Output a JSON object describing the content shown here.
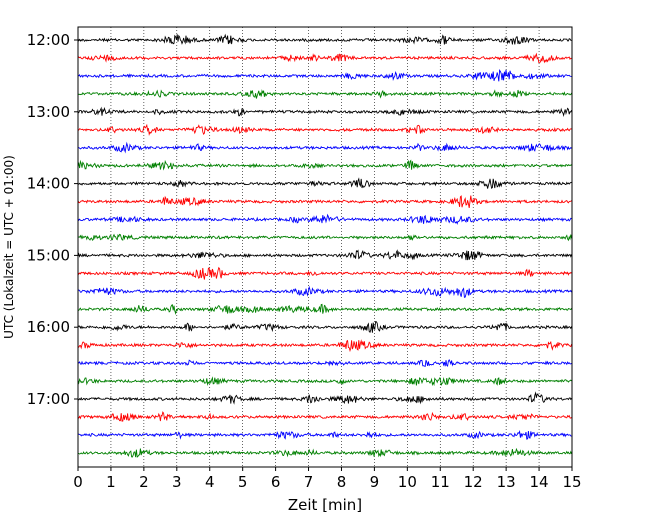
{
  "chart_data": {
    "type": "line",
    "title": "",
    "xlabel": "Zeit  [min]",
    "ylabel": "UTC (Lokalzeit = UTC + 01:00)",
    "xlim": [
      0,
      15
    ],
    "x_ticks": [
      0,
      1,
      2,
      3,
      4,
      5,
      6,
      7,
      8,
      9,
      10,
      11,
      12,
      13,
      14,
      15
    ],
    "y_tick_labels": [
      "12:00",
      "13:00",
      "14:00",
      "15:00",
      "16:00",
      "17:00"
    ],
    "rows_per_hour": 4,
    "minutes_per_row": 15,
    "vertical_grid": "dotted",
    "trace_colors": [
      "#000000",
      "#ff0000",
      "#0000ff",
      "#008000"
    ],
    "rows": [
      {
        "start": "12:00",
        "color": "#000000"
      },
      {
        "start": "12:15",
        "color": "#ff0000"
      },
      {
        "start": "12:30",
        "color": "#0000ff"
      },
      {
        "start": "12:45",
        "color": "#008000"
      },
      {
        "start": "13:00",
        "color": "#000000"
      },
      {
        "start": "13:15",
        "color": "#ff0000"
      },
      {
        "start": "13:30",
        "color": "#0000ff"
      },
      {
        "start": "13:45",
        "color": "#008000"
      },
      {
        "start": "14:00",
        "color": "#000000"
      },
      {
        "start": "14:15",
        "color": "#ff0000"
      },
      {
        "start": "14:30",
        "color": "#0000ff"
      },
      {
        "start": "14:45",
        "color": "#008000"
      },
      {
        "start": "15:00",
        "color": "#000000"
      },
      {
        "start": "15:15",
        "color": "#ff0000"
      },
      {
        "start": "15:30",
        "color": "#0000ff"
      },
      {
        "start": "15:45",
        "color": "#008000"
      },
      {
        "start": "16:00",
        "color": "#000000"
      },
      {
        "start": "16:15",
        "color": "#ff0000"
      },
      {
        "start": "16:30",
        "color": "#0000ff"
      },
      {
        "start": "16:45",
        "color": "#008000"
      },
      {
        "start": "17:00",
        "color": "#000000"
      },
      {
        "start": "17:15",
        "color": "#ff0000"
      },
      {
        "start": "17:30",
        "color": "#0000ff"
      },
      {
        "start": "17:45",
        "color": "#008000"
      }
    ]
  }
}
